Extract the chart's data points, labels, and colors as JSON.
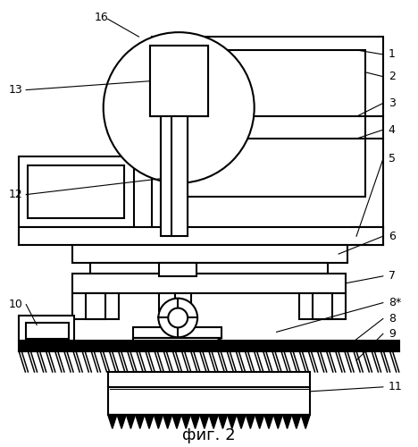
{
  "title": "фиг. 2",
  "title_fontsize": 13,
  "background_color": "#ffffff",
  "line_color": "#000000",
  "lw": 1.5,
  "lw_thin": 0.8
}
